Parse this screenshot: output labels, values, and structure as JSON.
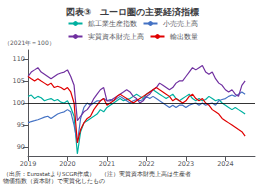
{
  "chart_data": {
    "type": "line",
    "title": "図表③　ユーロ圏の主要経済指標",
    "ylabel": "（2021年＝100）",
    "annotations": [
      "（出所：EurostatよりSCGR作成）　（注）実質資本財売上高は生産者",
      "物価指数（資本財）で実質化したもの"
    ],
    "reference_line": 100,
    "xlim": [
      2019.0,
      2024.75
    ],
    "xticks": [
      2019,
      2020,
      2021,
      2022,
      2023,
      2024
    ],
    "ylim": [
      88,
      112
    ],
    "yticks": [
      90,
      95,
      100,
      105,
      110
    ],
    "grid": false,
    "legend": "top",
    "x": [
      2019.0,
      2019.083,
      2019.167,
      2019.25,
      2019.333,
      2019.417,
      2019.5,
      2019.583,
      2019.667,
      2019.75,
      2019.833,
      2019.917,
      2020.0,
      2020.083,
      2020.167,
      2020.25,
      2020.333,
      2020.417,
      2020.5,
      2020.583,
      2020.667,
      2020.75,
      2020.833,
      2020.917,
      2021.0,
      2021.083,
      2021.167,
      2021.25,
      2021.333,
      2021.417,
      2021.5,
      2021.583,
      2021.667,
      2021.75,
      2021.833,
      2021.917,
      2022.0,
      2022.083,
      2022.167,
      2022.25,
      2022.333,
      2022.417,
      2022.5,
      2022.583,
      2022.667,
      2022.75,
      2022.833,
      2022.917,
      2023.0,
      2023.083,
      2023.167,
      2023.25,
      2023.333,
      2023.417,
      2023.5,
      2023.583,
      2023.667,
      2023.75,
      2023.833,
      2023.917,
      2024.0,
      2024.083,
      2024.167,
      2024.25,
      2024.333,
      2024.417,
      2024.5
    ],
    "series": [
      {
        "name": "鉱工業生産指数",
        "color": "#00b0a0",
        "values": [
          101.5,
          101.8,
          101.0,
          101.5,
          101.2,
          100.5,
          100.8,
          101.0,
          100.5,
          100.8,
          100.2,
          100.0,
          100.5,
          99.0,
          97.0,
          88.5,
          93.5,
          95.5,
          96.0,
          96.5,
          97.0,
          97.5,
          98.5,
          98.0,
          99.0,
          99.5,
          100.0,
          100.5,
          101.0,
          100.5,
          100.8,
          101.0,
          101.5,
          102.0,
          101.5,
          101.0,
          102.0,
          102.5,
          103.0,
          102.5,
          102.0,
          101.5,
          101.0,
          101.5,
          102.0,
          101.0,
          100.5,
          101.0,
          101.5,
          102.0,
          101.0,
          100.5,
          101.0,
          100.5,
          100.8,
          101.5,
          101.0,
          100.5,
          100.8,
          100.0,
          99.5,
          99.0,
          98.5,
          99.0,
          98.5,
          98.0,
          97.5
        ]
      },
      {
        "name": "小売売上高",
        "color": "#4472c4",
        "values": [
          95.5,
          95.8,
          96.0,
          96.2,
          96.5,
          96.8,
          97.0,
          96.5,
          97.0,
          97.5,
          97.8,
          98.0,
          98.5,
          98.0,
          95.0,
          91.0,
          96.5,
          99.0,
          100.0,
          99.5,
          100.0,
          100.5,
          100.5,
          101.0,
          100.5,
          100.8,
          100.5,
          101.0,
          101.5,
          101.0,
          100.5,
          100.0,
          100.5,
          100.8,
          100.5,
          100.8,
          101.5,
          101.0,
          101.5,
          101.0,
          100.5,
          100.0,
          99.5,
          99.0,
          99.5,
          99.0,
          99.5,
          99.5,
          99.0,
          99.5,
          99.8,
          100.0,
          99.5,
          100.0,
          99.5,
          99.8,
          100.0,
          99.5,
          100.5,
          100.8,
          101.0,
          101.5,
          101.8,
          101.5,
          102.0,
          102.5,
          102.0
        ]
      },
      {
        "name": "実質資本財売上高",
        "color": "#7030a0",
        "values": [
          106.0,
          107.0,
          107.5,
          108.0,
          107.0,
          106.5,
          106.0,
          105.5,
          106.0,
          106.5,
          106.8,
          107.0,
          107.5,
          106.0,
          104.0,
          96.0,
          97.0,
          98.0,
          98.5,
          99.5,
          101.0,
          102.0,
          103.0,
          103.5,
          100.5,
          100.5,
          101.0,
          101.5,
          102.0,
          102.5,
          103.0,
          102.5,
          101.5,
          101.0,
          100.0,
          100.5,
          101.5,
          102.0,
          103.0,
          103.5,
          104.5,
          104.0,
          103.5,
          103.0,
          103.5,
          104.5,
          105.0,
          105.0,
          106.0,
          107.0,
          108.0,
          107.5,
          108.0,
          108.5,
          107.0,
          106.5,
          107.0,
          105.5,
          104.5,
          104.0,
          103.0,
          102.5,
          103.0,
          102.0,
          101.5,
          104.0,
          105.0
        ]
      },
      {
        "name": "輸出数量",
        "color": "#e00000",
        "values": [
          106.0,
          105.5,
          105.0,
          105.5,
          105.0,
          104.5,
          104.0,
          104.5,
          103.5,
          103.8,
          103.5,
          103.0,
          103.5,
          102.5,
          100.0,
          91.0,
          94.0,
          95.5,
          96.5,
          97.0,
          98.5,
          99.5,
          100.5,
          101.0,
          99.5,
          100.0,
          100.5,
          101.5,
          102.0,
          101.5,
          101.0,
          100.5,
          100.0,
          100.5,
          101.0,
          101.5,
          102.0,
          102.5,
          103.0,
          103.5,
          103.0,
          102.5,
          102.0,
          101.5,
          100.5,
          101.0,
          100.5,
          100.0,
          100.5,
          101.5,
          102.0,
          101.0,
          100.5,
          101.0,
          100.0,
          99.5,
          98.5,
          98.0,
          97.5,
          96.5,
          96.0,
          95.5,
          95.0,
          94.5,
          94.0,
          93.5,
          92.5
        ]
      }
    ]
  }
}
